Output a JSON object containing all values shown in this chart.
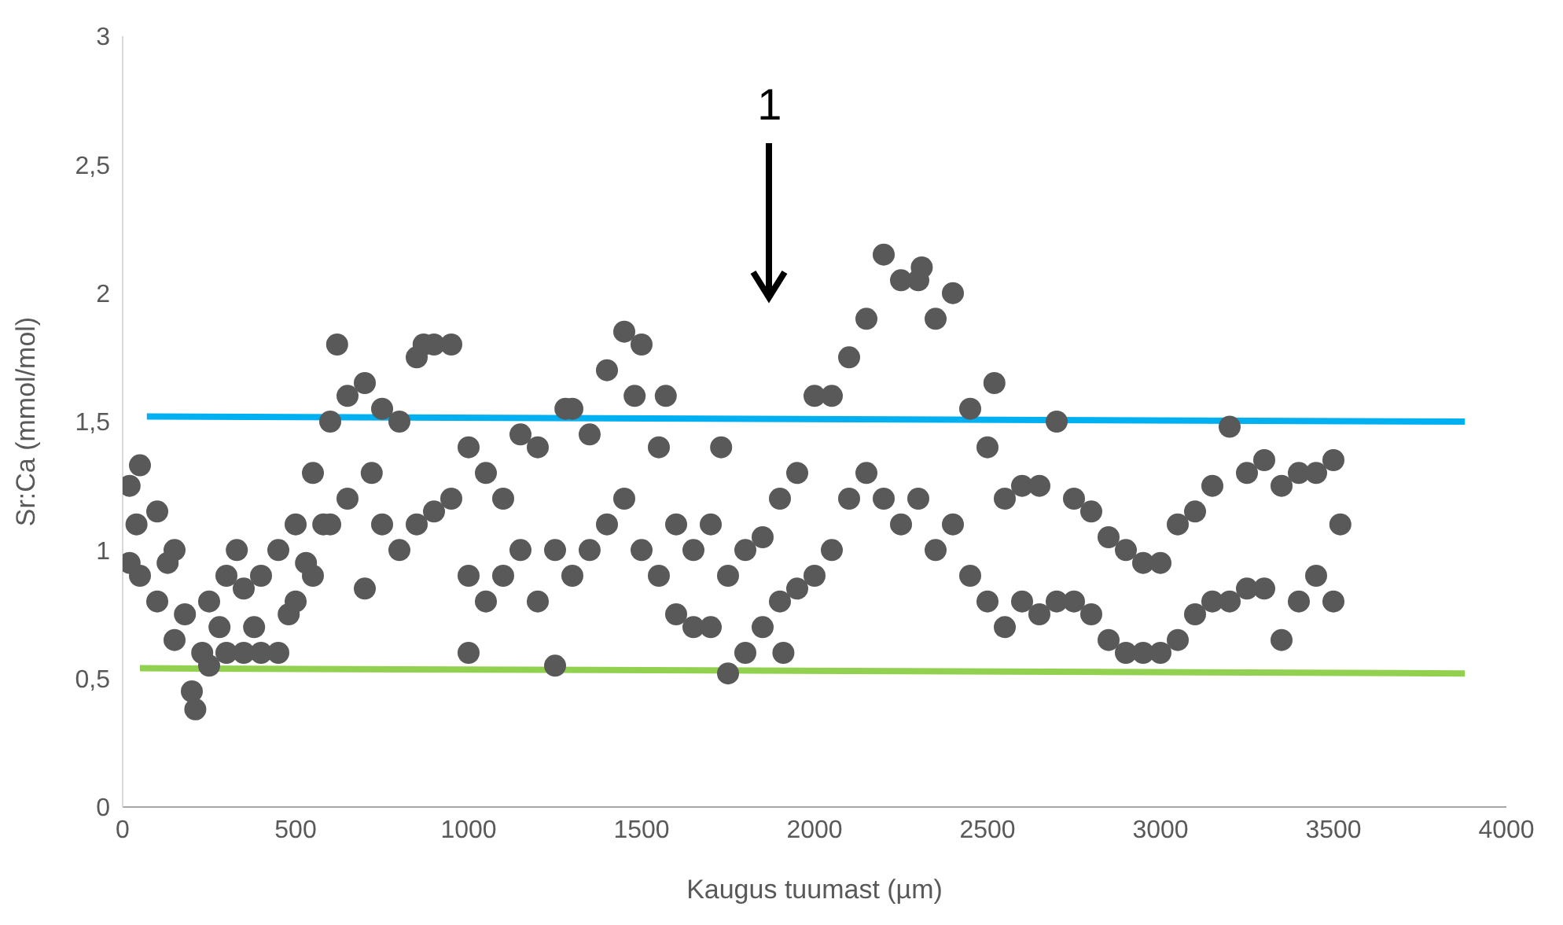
{
  "chart_data": {
    "type": "scatter",
    "xlabel": "Kaugus tuumast (µm)",
    "ylabel": "Sr:Ca (mmol/mol)",
    "xlim": [
      0,
      4000
    ],
    "xticks": [
      0,
      500,
      1000,
      1500,
      2000,
      2500,
      3000,
      3500,
      4000
    ],
    "ylim": [
      0,
      3
    ],
    "yticks": [
      0,
      {
        "value": 0.5,
        "label": "0,5"
      },
      1,
      {
        "value": 1.5,
        "label": "1,5"
      },
      2,
      {
        "value": 2.5,
        "label": "2,5"
      },
      3
    ],
    "annotations": [
      "1"
    ],
    "series": [
      {
        "color": "#595959",
        "marker": "circle",
        "x": [
          20,
          20,
          40,
          50,
          50,
          100,
          100,
          130,
          150,
          150,
          180,
          200,
          210,
          230,
          250,
          250,
          280,
          300,
          300,
          330,
          350,
          350,
          380,
          400,
          400,
          450,
          450,
          480,
          500,
          500,
          530,
          550,
          550,
          580,
          600,
          600,
          620,
          650,
          650,
          700,
          700,
          720,
          750,
          750,
          800,
          800,
          850,
          850,
          870,
          900,
          900,
          950,
          950,
          1000,
          1000,
          1000,
          1050,
          1050,
          1100,
          1100,
          1150,
          1150,
          1200,
          1200,
          1250,
          1250,
          1280,
          1300,
          1300,
          1350,
          1350,
          1400,
          1400,
          1450,
          1450,
          1480,
          1500,
          1500,
          1550,
          1550,
          1570,
          1600,
          1600,
          1650,
          1650,
          1700,
          1700,
          1730,
          1750,
          1750,
          1800,
          1800,
          1850,
          1850,
          1900,
          1900,
          1910,
          1950,
          1950,
          2000,
          2000,
          2050,
          2050,
          2100,
          2100,
          2150,
          2150,
          2200,
          2200,
          2250,
          2250,
          2300,
          2300,
          2310,
          2350,
          2350,
          2400,
          2400,
          2450,
          2450,
          2500,
          2500,
          2520,
          2550,
          2550,
          2600,
          2600,
          2650,
          2650,
          2700,
          2700,
          2750,
          2750,
          2800,
          2800,
          2850,
          2850,
          2900,
          2900,
          2950,
          2950,
          3000,
          3000,
          3050,
          3050,
          3100,
          3100,
          3150,
          3150,
          3200,
          3200,
          3250,
          3250,
          3300,
          3300,
          3350,
          3350,
          3400,
          3400,
          3450,
          3450,
          3500,
          3500,
          3520
        ],
        "values": [
          0.95,
          1.25,
          1.1,
          0.9,
          1.33,
          0.8,
          1.15,
          0.95,
          0.65,
          1.0,
          0.75,
          0.45,
          0.38,
          0.6,
          0.55,
          0.8,
          0.7,
          0.6,
          0.9,
          1.0,
          0.6,
          0.85,
          0.7,
          0.6,
          0.9,
          0.6,
          1.0,
          0.75,
          0.8,
          1.1,
          0.95,
          0.9,
          1.3,
          1.1,
          1.1,
          1.5,
          1.8,
          1.2,
          1.6,
          0.85,
          1.65,
          1.3,
          1.1,
          1.55,
          1.0,
          1.5,
          1.1,
          1.75,
          1.8,
          1.15,
          1.8,
          1.2,
          1.8,
          0.9,
          1.4,
          0.6,
          0.8,
          1.3,
          0.9,
          1.2,
          1.0,
          1.45,
          0.8,
          1.4,
          0.55,
          1.0,
          1.55,
          0.9,
          1.55,
          1.0,
          1.45,
          1.1,
          1.7,
          1.2,
          1.85,
          1.6,
          1.0,
          1.8,
          0.9,
          1.4,
          1.6,
          0.75,
          1.1,
          0.7,
          1.0,
          0.7,
          1.1,
          1.4,
          0.52,
          0.9,
          0.6,
          1.0,
          0.7,
          1.05,
          0.8,
          1.2,
          0.6,
          0.85,
          1.3,
          0.9,
          1.6,
          1.0,
          1.6,
          1.2,
          1.75,
          1.3,
          1.9,
          1.2,
          2.15,
          1.1,
          2.05,
          1.2,
          2.05,
          2.1,
          1.0,
          1.9,
          1.1,
          2.0,
          0.9,
          1.55,
          0.8,
          1.4,
          1.65,
          0.7,
          1.2,
          0.8,
          1.25,
          0.75,
          1.25,
          0.8,
          1.5,
          0.8,
          1.2,
          0.75,
          1.15,
          0.65,
          1.05,
          0.6,
          1.0,
          0.6,
          0.95,
          0.6,
          0.95,
          0.65,
          1.1,
          0.75,
          1.15,
          0.8,
          1.25,
          0.8,
          1.48,
          0.85,
          1.3,
          0.85,
          1.35,
          0.65,
          1.25,
          0.8,
          1.3,
          0.9,
          1.3,
          0.8,
          1.35,
          1.1
        ]
      },
      {
        "type": "line",
        "color": "#00b0f0",
        "marker": "none",
        "line_style": "solid",
        "x": [
          70,
          3880
        ],
        "values": [
          1.52,
          1.5
        ]
      },
      {
        "type": "line",
        "color": "#92d050",
        "marker": "none",
        "line_style": "solid",
        "x": [
          50,
          3880
        ],
        "values": [
          0.54,
          0.52
        ]
      }
    ]
  }
}
